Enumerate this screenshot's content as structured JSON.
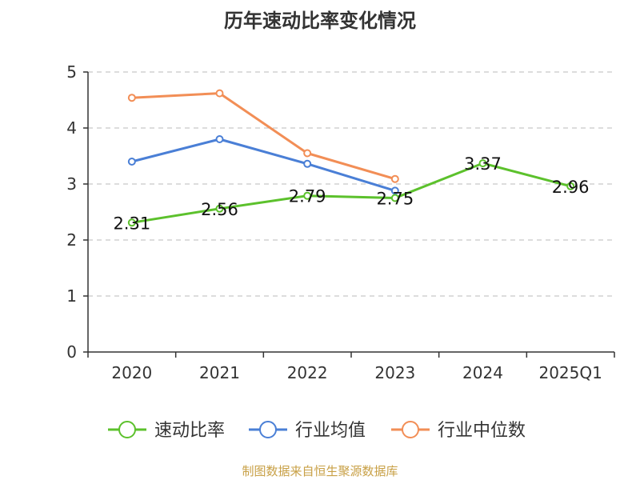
{
  "chart_data": {
    "type": "line",
    "title": "历年速动比率变化情况",
    "categories": [
      "2020",
      "2021",
      "2022",
      "2023",
      "2024",
      "2025Q1"
    ],
    "ylim": [
      0,
      5
    ],
    "yticks": [
      0,
      1,
      2,
      3,
      4,
      5
    ],
    "grid": true,
    "legend_position": "bottom",
    "series": [
      {
        "name": "速动比率",
        "color": "#5cc12c",
        "values": [
          2.31,
          2.56,
          2.79,
          2.75,
          3.37,
          2.96
        ],
        "show_labels": true
      },
      {
        "name": "行业均值",
        "color": "#4a7fd6",
        "values": [
          3.4,
          3.8,
          3.36,
          2.88,
          null,
          null
        ],
        "show_labels": false
      },
      {
        "name": "行业中位数",
        "color": "#f28e56",
        "values": [
          4.54,
          4.62,
          3.55,
          3.09,
          null,
          null
        ],
        "show_labels": false
      }
    ]
  },
  "source": "制图数据来自恒生聚源数据库"
}
